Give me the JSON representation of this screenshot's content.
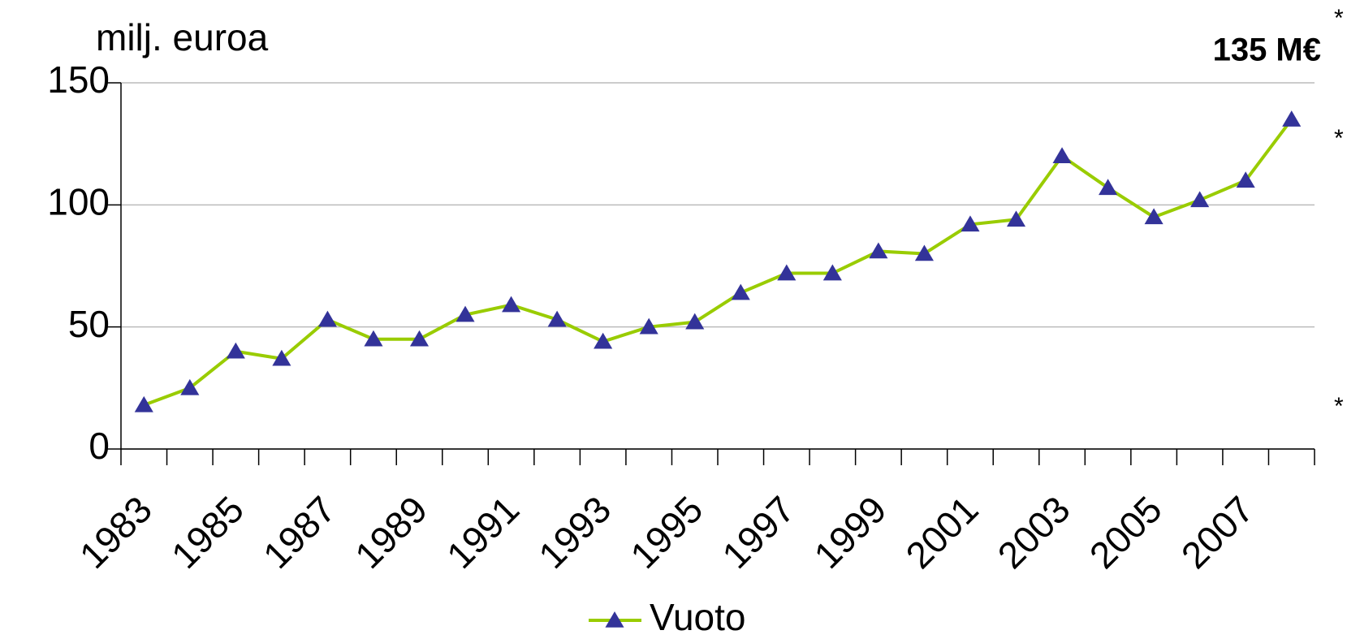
{
  "chart_data": {
    "type": "line",
    "y_label": "milj. euroa",
    "annotations": [
      "135 M€",
      "*",
      "*",
      "*"
    ],
    "categories": [
      "1983",
      null,
      "1985",
      null,
      "1987",
      null,
      "1989",
      null,
      "1991",
      null,
      "1993",
      null,
      "1995",
      null,
      "1997",
      null,
      "1999",
      null,
      "2001",
      null,
      "2003",
      null,
      "2005",
      null,
      "2007",
      null
    ],
    "series": [
      {
        "name": "Vuoto",
        "color": "#99cc00",
        "marker_color": "#333399",
        "values": [
          18,
          25,
          40,
          37,
          53,
          45,
          45,
          55,
          59,
          53,
          44,
          50,
          52,
          64,
          72,
          72,
          81,
          80,
          92,
          94,
          120,
          107,
          95,
          102,
          110,
          135
        ]
      }
    ],
    "ylim": [
      0,
      150
    ],
    "yticks": [
      0,
      50,
      100,
      150
    ],
    "grid": true,
    "legend": "bottom"
  }
}
